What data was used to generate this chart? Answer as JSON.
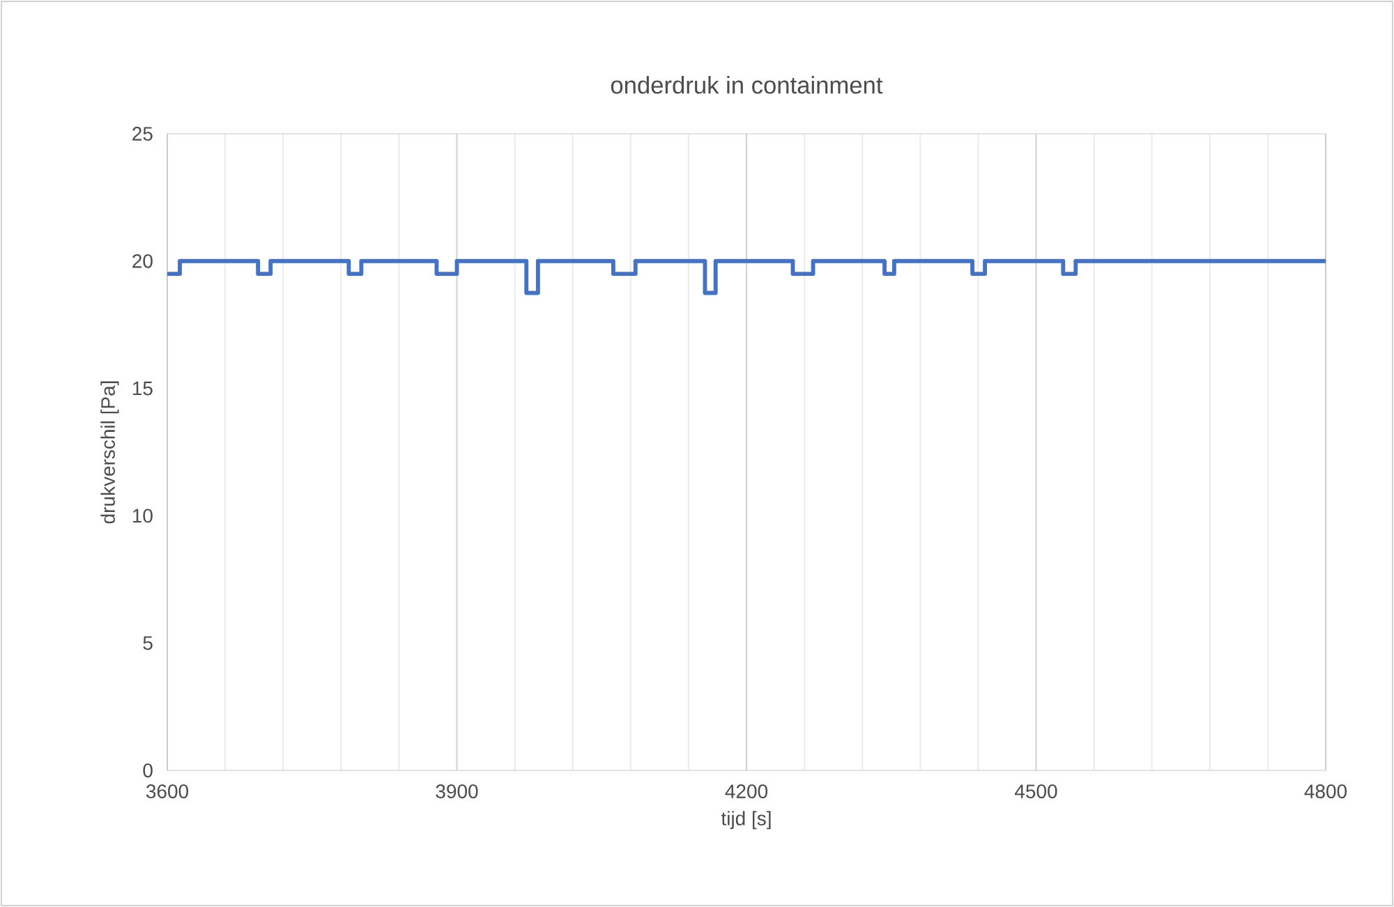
{
  "chart_data": {
    "type": "step",
    "title": "onderdruk in containment",
    "xlabel": "tijd [s]",
    "ylabel": "drukverschil [Pa]",
    "x": [
      3600,
      3613,
      3694,
      3707,
      3788,
      3801,
      3879,
      3900,
      3972,
      3984,
      4062,
      4085,
      4157,
      4168,
      4248,
      4269,
      4343,
      4353,
      4434,
      4447,
      4528,
      4541,
      4800
    ],
    "series": [
      {
        "color": "#4472c4",
        "values": [
          19.5,
          20,
          19.5,
          20,
          19.5,
          20,
          19.5,
          20,
          18.75,
          20,
          19.5,
          20,
          18.75,
          20,
          19.5,
          20,
          19.5,
          20,
          19.5,
          20,
          19.5,
          20,
          20
        ]
      }
    ],
    "xlim": [
      3600,
      4800
    ],
    "ylim": [
      0,
      25
    ],
    "xticks": [
      3600,
      {
        "value": 3660,
        "label": null
      },
      {
        "value": 3720,
        "label": null
      },
      {
        "value": 3780,
        "label": null
      },
      {
        "value": 3840,
        "label": null
      },
      3900,
      {
        "value": 3960,
        "label": null
      },
      {
        "value": 4020,
        "label": null
      },
      {
        "value": 4080,
        "label": null
      },
      {
        "value": 4140,
        "label": null
      },
      4200,
      {
        "value": 4260,
        "label": null
      },
      {
        "value": 4320,
        "label": null
      },
      {
        "value": 4380,
        "label": null
      },
      {
        "value": 4440,
        "label": null
      },
      4500,
      {
        "value": 4560,
        "label": null
      },
      {
        "value": 4620,
        "label": null
      },
      {
        "value": 4680,
        "label": null
      },
      {
        "value": 4740,
        "label": null
      },
      4800
    ],
    "yticks": [
      0,
      5,
      10,
      15,
      20,
      25
    ],
    "grid": "x",
    "marker": "none",
    "line_style": "solid"
  }
}
